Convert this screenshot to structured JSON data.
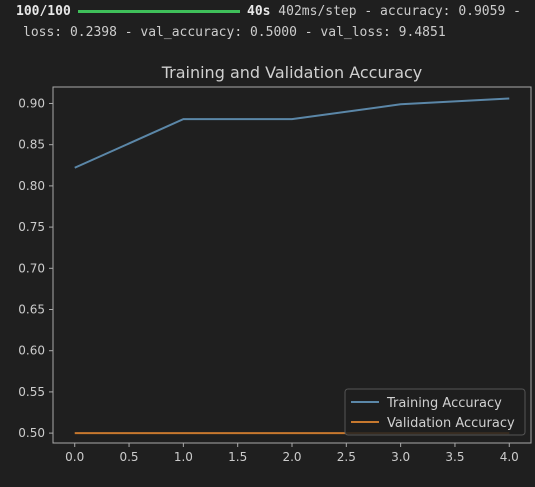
{
  "console": {
    "steps": "100/100",
    "time": "40s",
    "rest_line1": " 402ms/step - accuracy: 0.9059 -",
    "line2": "loss: 0.2398 - val_accuracy: 0.5000 - val_loss: 9.4851",
    "progress": 1.0,
    "progress_color": "#3fbf5a"
  },
  "chart_data": {
    "type": "line",
    "title": "Training and Validation Accuracy",
    "xlabel": "",
    "ylabel": "",
    "x": [
      0,
      1,
      2,
      3,
      4
    ],
    "xlim": [
      -0.2,
      4.2
    ],
    "ylim": [
      0.488,
      0.92
    ],
    "xticks": [
      "0.0",
      "0.5",
      "1.0",
      "1.5",
      "2.0",
      "2.5",
      "3.0",
      "3.5",
      "4.0"
    ],
    "yticks": [
      "0.50",
      "0.55",
      "0.60",
      "0.65",
      "0.70",
      "0.75",
      "0.80",
      "0.85",
      "0.90"
    ],
    "grid": false,
    "legend_position": "lower-right",
    "series": [
      {
        "name": "Training Accuracy",
        "values": [
          0.822,
          0.881,
          0.881,
          0.899,
          0.906
        ],
        "color": "#5b87a8"
      },
      {
        "name": "Validation Accuracy",
        "values": [
          0.5,
          0.5,
          0.5,
          0.5,
          0.5
        ],
        "color": "#c7782e"
      }
    ]
  }
}
